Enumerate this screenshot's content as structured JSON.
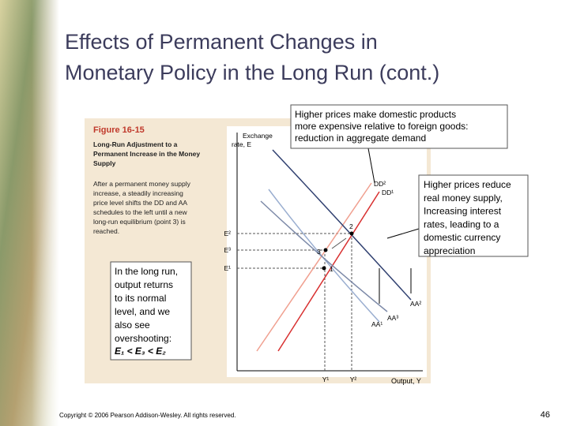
{
  "slide": {
    "title": [
      "Effects of Permanent Changes in",
      "Monetary Policy in the Long Run (cont.)"
    ],
    "figure": {
      "number": "Figure 16-15",
      "caption": [
        "Long-Run Adjustment to a",
        "Permanent Increase in the Money",
        "Supply"
      ],
      "description": [
        "After a permanent money supply",
        "increase, a steadily increasing",
        "price level shifts the DD and AA",
        "schedules to the left until a new",
        "long-run equilibrium (point 3) is",
        "reached."
      ],
      "graph": {
        "y_axis_label": [
          "Exchange",
          "rate, E"
        ],
        "x_axis_label": "Output, Y",
        "e_labels": [
          "E²",
          "E³",
          "E¹"
        ],
        "y_labels": [
          "Y¹",
          "Y²"
        ],
        "curves": [
          "DD²",
          "DD¹",
          "AA²",
          "AA¹",
          "AA³"
        ],
        "points": [
          "1",
          "2",
          "3"
        ]
      }
    },
    "callouts": {
      "demand": [
        "Higher prices make domestic products",
        "more expensive relative to foreign goods:",
        "reduction in aggregate demand"
      ],
      "money": [
        "Higher prices reduce",
        "real money supply,",
        "Increasing interest",
        "rates, leading to a",
        "domestic currency",
        "appreciation"
      ],
      "long_run": [
        "In the long run,",
        "output returns",
        "to its normal",
        "level, and we",
        "also see",
        "overshooting:"
      ],
      "inequality": "E₁ < E₃ < E₂"
    },
    "footer": {
      "copyright": "Copyright © 2006 Pearson Addison-Wesley. All rights reserved.",
      "page": "46"
    }
  }
}
